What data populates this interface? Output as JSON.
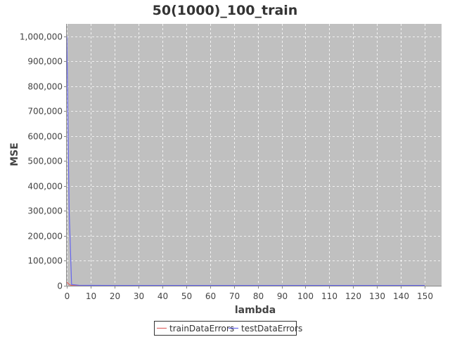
{
  "chart_data": {
    "type": "line",
    "title": "50(1000)_100_train",
    "xlabel": "lambda",
    "ylabel": "MSE",
    "xlim": [
      0,
      157
    ],
    "ylim": [
      0,
      1050000
    ],
    "x_ticks": [
      0,
      10,
      20,
      30,
      40,
      50,
      60,
      70,
      80,
      90,
      100,
      110,
      120,
      130,
      140,
      150
    ],
    "y_ticks": [
      0,
      100000,
      200000,
      300000,
      400000,
      500000,
      600000,
      700000,
      800000,
      900000,
      1000000
    ],
    "y_tick_labels": [
      "0",
      "100,000",
      "200,000",
      "300,000",
      "400,000",
      "500,000",
      "600,000",
      "700,000",
      "800,000",
      "900,000",
      "1,000,000"
    ],
    "grid": true,
    "legend_position": "bottom",
    "plot_background": "#c0c0c0",
    "series": [
      {
        "name": "trainDataErrors",
        "color": "#e06666",
        "x": [
          0,
          1,
          2,
          5,
          10,
          20,
          30,
          40,
          50,
          60,
          70,
          80,
          90,
          100,
          110,
          120,
          130,
          140,
          150
        ],
        "y": [
          15000,
          5000,
          1000,
          500,
          300,
          200,
          150,
          120,
          100,
          100,
          100,
          100,
          100,
          100,
          100,
          100,
          100,
          100,
          100
        ]
      },
      {
        "name": "testDataErrors",
        "color": "#6666ee",
        "x": [
          0,
          1,
          2,
          5,
          10,
          20,
          30,
          40,
          50,
          60,
          70,
          80,
          90,
          100,
          110,
          120,
          130,
          140,
          150
        ],
        "y": [
          1000000,
          300000,
          5000,
          2000,
          1500,
          1200,
          1100,
          1000,
          1000,
          1000,
          1000,
          1000,
          1000,
          1000,
          1000,
          1000,
          1000,
          1000,
          1000
        ]
      }
    ]
  }
}
